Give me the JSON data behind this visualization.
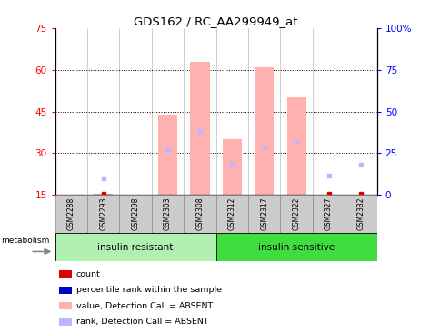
{
  "title": "GDS162 / RC_AA299949_at",
  "samples": [
    "GSM2288",
    "GSM2293",
    "GSM2298",
    "GSM2303",
    "GSM2308",
    "GSM2312",
    "GSM2317",
    "GSM2322",
    "GSM2327",
    "GSM2332"
  ],
  "bar_values_absent": [
    0,
    15.5,
    0,
    44,
    63,
    35,
    61,
    50,
    0,
    0
  ],
  "rank_dots_absent_left": [
    0,
    21,
    0,
    31,
    38,
    26,
    32,
    34,
    22,
    26
  ],
  "has_absent_bar": [
    false,
    true,
    false,
    true,
    true,
    true,
    true,
    true,
    false,
    false
  ],
  "has_absent_rank": [
    false,
    true,
    false,
    true,
    true,
    true,
    true,
    true,
    true,
    true
  ],
  "count_dots_left": [
    0,
    15.5,
    0,
    0,
    0,
    0,
    0,
    0,
    15.5,
    15.5
  ],
  "has_count": [
    false,
    true,
    false,
    false,
    false,
    false,
    false,
    false,
    true,
    true
  ],
  "group1_label": "insulin resistant",
  "group2_label": "insulin sensitive",
  "metabolism_label": "metabolism",
  "ylim_left": [
    15,
    75
  ],
  "ylim_right": [
    0,
    100
  ],
  "yticks_left": [
    15,
    30,
    45,
    60,
    75
  ],
  "yticks_right": [
    0,
    25,
    50,
    75,
    100
  ],
  "ytick_labels_right": [
    "0",
    "25",
    "50",
    "75",
    "100%"
  ],
  "hgrid_lines": [
    30,
    45,
    60
  ],
  "bar_color_absent": "#ffb0b0",
  "rank_dot_color_absent": "#b8b8ff",
  "count_dot_color": "#dd0000",
  "group1_color": "#b0f0b0",
  "group2_color": "#40dd40",
  "legend_items": [
    {
      "label": "count",
      "color": "#dd0000"
    },
    {
      "label": "percentile rank within the sample",
      "color": "#0000cc"
    },
    {
      "label": "value, Detection Call = ABSENT",
      "color": "#ffb0b0"
    },
    {
      "label": "rank, Detection Call = ABSENT",
      "color": "#b8b8ff"
    }
  ]
}
